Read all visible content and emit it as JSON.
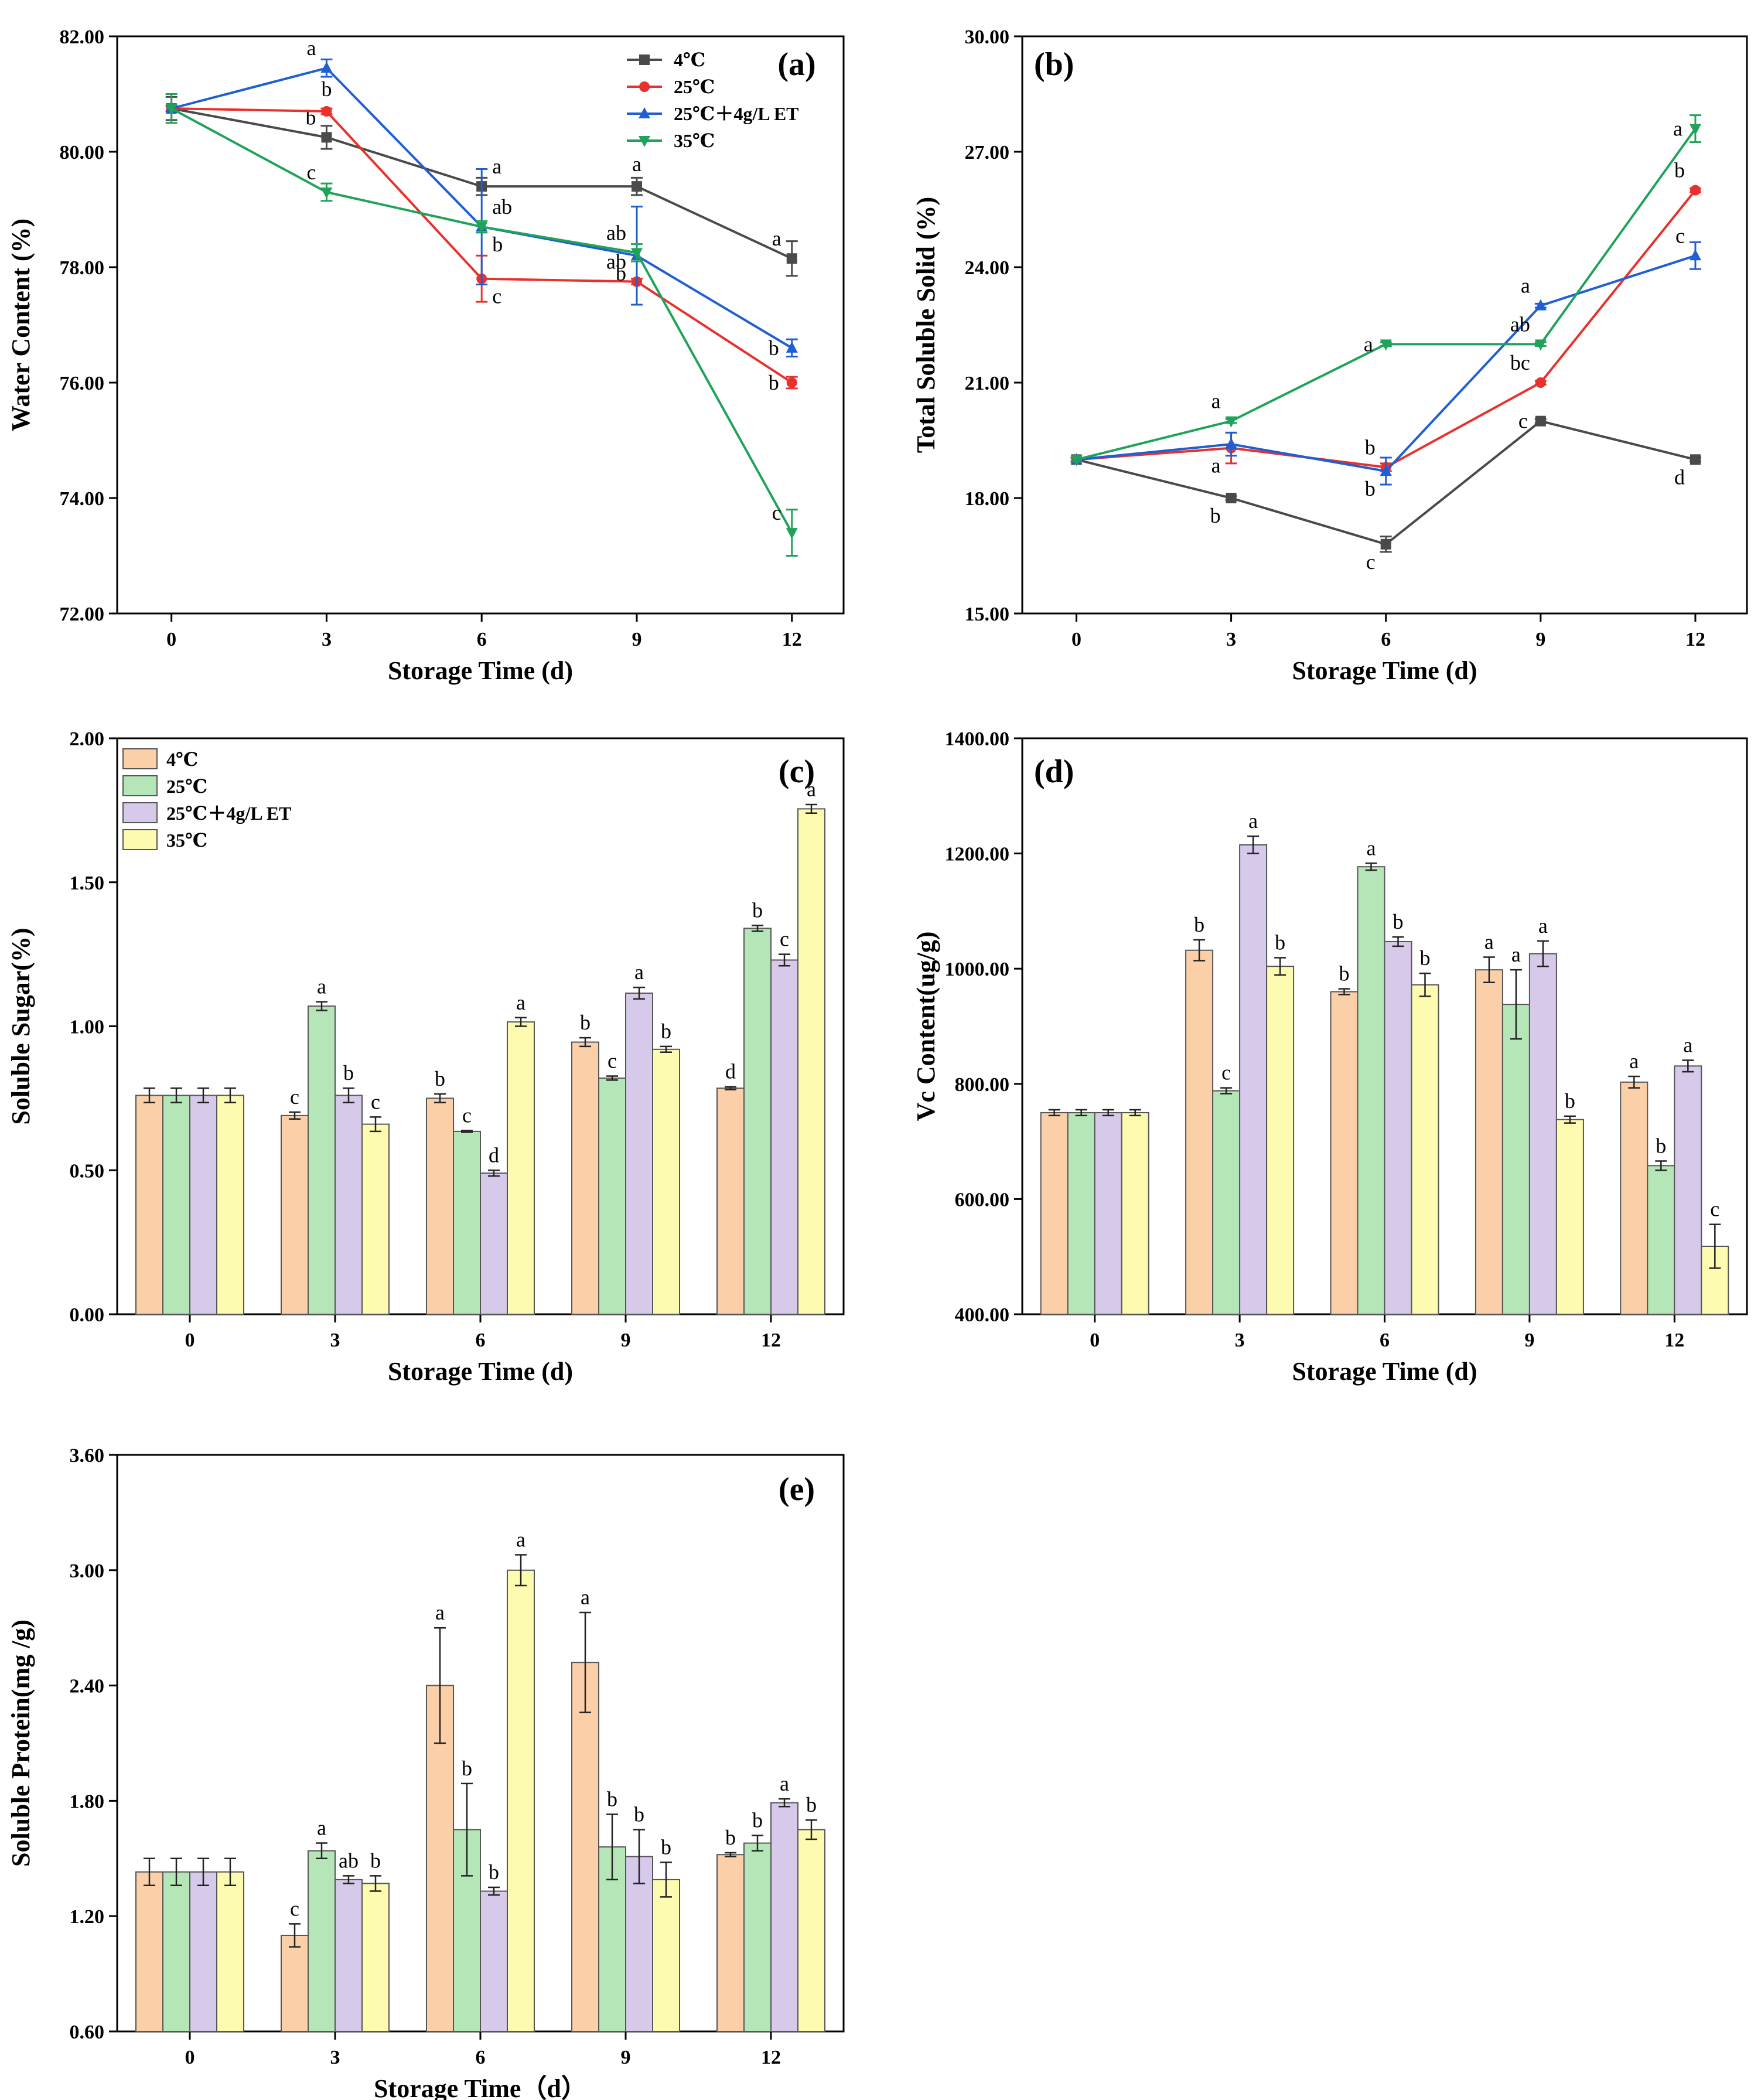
{
  "colors": {
    "4C": "#4a4a4a",
    "25C": "#e8312d",
    "25CET": "#1f5fd1",
    "35C": "#1fa35a",
    "bar4C": "#fbcfa8",
    "bar25C": "#b5e6b8",
    "bar25CET": "#d6c9ea",
    "bar35C": "#fdfbb0",
    "barEdge": "#555555"
  },
  "chart_data": [
    {
      "panel": "(a)",
      "type": "line",
      "x": [
        0,
        3,
        6,
        9,
        12
      ],
      "xticklabels": [
        "0",
        "3",
        "6",
        "9",
        "12"
      ],
      "xlabel": "Storage Time (d)",
      "ylabel": "Water Content (%)",
      "ylim": [
        72,
        82
      ],
      "yticks": [
        "72.00",
        "74.00",
        "76.00",
        "78.00",
        "80.00",
        "82.00"
      ],
      "legend_position": "top-right",
      "series": [
        {
          "key": "4C",
          "name": "4℃",
          "marker": "square",
          "values": [
            80.75,
            80.25,
            79.4,
            79.4,
            78.15
          ],
          "err": [
            0.2,
            0.2,
            0.15,
            0.15,
            0.3
          ],
          "letters": [
            "",
            "b",
            "a",
            "a",
            "a"
          ],
          "pos": [
            "",
            "above-left",
            "above-right",
            "above",
            "above-left"
          ]
        },
        {
          "key": "25C",
          "name": "25℃",
          "marker": "circle",
          "values": [
            80.75,
            80.7,
            77.8,
            77.75,
            76.0
          ],
          "err": [
            0.05,
            0.05,
            0.4,
            0.05,
            0.1
          ],
          "letters": [
            "",
            "b",
            "c",
            "ab",
            "b"
          ],
          "pos": [
            "",
            "above",
            "below-right",
            "above-left",
            "left"
          ]
        },
        {
          "key": "25CET",
          "name": "25℃＋4g/L ET",
          "marker": "triangle-up",
          "values": [
            80.75,
            81.45,
            78.7,
            78.2,
            76.6
          ],
          "err": [
            0.05,
            0.15,
            1.0,
            0.85,
            0.15
          ],
          "letters": [
            "",
            "a",
            "b",
            "b",
            "b"
          ],
          "pos": [
            "",
            "above-left",
            "below-right",
            "below-left",
            "left"
          ]
        },
        {
          "key": "35C",
          "name": "35℃",
          "marker": "triangle-down",
          "values": [
            80.75,
            79.3,
            78.7,
            78.25,
            73.4
          ],
          "err": [
            0.25,
            0.15,
            0.1,
            0.15,
            0.4
          ],
          "letters": [
            "",
            "c",
            "ab",
            "ab",
            "c"
          ],
          "pos": [
            "",
            "above-left",
            "above-right",
            "above-left",
            "above-left"
          ]
        }
      ]
    },
    {
      "panel": "(b)",
      "type": "line",
      "x": [
        0,
        3,
        6,
        9,
        12
      ],
      "xticklabels": [
        "0",
        "3",
        "6",
        "9",
        "12"
      ],
      "xlabel": "Storage Time (d)",
      "ylabel": "Total Soluble Solid (%)",
      "ylim": [
        15,
        30
      ],
      "yticks": [
        "15.00",
        "18.00",
        "21.00",
        "24.00",
        "27.00",
        "30.00"
      ],
      "series": [
        {
          "key": "4C",
          "name": "4℃",
          "marker": "square",
          "values": [
            19.0,
            18.0,
            16.8,
            20.0,
            19.0
          ],
          "err": [
            0.05,
            0.05,
            0.2,
            0.05,
            0.05
          ],
          "letters": [
            "",
            "b",
            "c",
            "c",
            "d"
          ],
          "pos": [
            "",
            "below-left",
            "below-left",
            "left",
            "below-left"
          ]
        },
        {
          "key": "25C",
          "name": "25℃",
          "marker": "circle",
          "values": [
            19.0,
            19.3,
            18.8,
            21.0,
            26.0
          ],
          "err": [
            0.05,
            0.4,
            0.1,
            0.05,
            0.05
          ],
          "letters": [
            "",
            "a",
            "b",
            "bc",
            "b"
          ],
          "pos": [
            "",
            "below-left",
            "above-left",
            "above-left",
            "above-left"
          ]
        },
        {
          "key": "25CET",
          "name": "25℃＋4g/L ET",
          "marker": "triangle-up",
          "values": [
            19.0,
            19.4,
            18.7,
            23.0,
            24.3
          ],
          "err": [
            0.05,
            0.3,
            0.35,
            0.05,
            0.35
          ],
          "letters": [
            "",
            "",
            "b",
            "a",
            "c"
          ],
          "pos": [
            "",
            "",
            "below-left",
            "above-left",
            "above-left"
          ]
        },
        {
          "key": "35C",
          "name": "35℃",
          "marker": "triangle-down",
          "values": [
            19.0,
            20.0,
            22.0,
            22.0,
            27.6
          ],
          "err": [
            0.05,
            0.05,
            0.05,
            0.05,
            0.35
          ],
          "letters": [
            "",
            "a",
            "a",
            "ab",
            "a"
          ],
          "pos": [
            "",
            "above-left",
            "left",
            "above-left",
            "left"
          ]
        }
      ]
    },
    {
      "panel": "(c)",
      "type": "bar",
      "categories": [
        "0",
        "3",
        "6",
        "9",
        "12"
      ],
      "xlabel": "Storage Time (d)",
      "ylabel": "Soluble Sugar(%)",
      "ylim": [
        0,
        2
      ],
      "yticks": [
        "0.00",
        "0.50",
        "1.00",
        "1.50",
        "2.00"
      ],
      "legend_position": "top-left",
      "series": [
        {
          "key": "bar4C",
          "name": "4℃",
          "values": [
            0.76,
            0.69,
            0.75,
            0.945,
            0.785
          ],
          "err": [
            0.025,
            0.012,
            0.015,
            0.015,
            0.005
          ],
          "letters": [
            "",
            "c",
            "b",
            "b",
            "d"
          ]
        },
        {
          "key": "bar25C",
          "name": "25℃",
          "values": [
            0.76,
            1.07,
            0.635,
            0.82,
            1.34
          ],
          "err": [
            0.025,
            0.015,
            0.003,
            0.007,
            0.01
          ],
          "letters": [
            "",
            "a",
            "c",
            "c",
            "b"
          ]
        },
        {
          "key": "bar25CET",
          "name": "25℃＋4g/L ET",
          "values": [
            0.76,
            0.76,
            0.49,
            1.115,
            1.23
          ],
          "err": [
            0.025,
            0.025,
            0.01,
            0.02,
            0.02
          ],
          "letters": [
            "",
            "b",
            "d",
            "a",
            "c"
          ]
        },
        {
          "key": "bar35C",
          "name": "35℃",
          "values": [
            0.76,
            0.66,
            1.015,
            0.92,
            1.755
          ],
          "err": [
            0.025,
            0.025,
            0.015,
            0.01,
            0.015
          ],
          "letters": [
            "",
            "c",
            "a",
            "b",
            "a"
          ]
        }
      ]
    },
    {
      "panel": "(d)",
      "type": "bar",
      "categories": [
        "0",
        "3",
        "6",
        "9",
        "12"
      ],
      "xlabel": "Storage Time (d)",
      "ylabel": "Vc Content(ug/g)",
      "ylim": [
        400,
        1400
      ],
      "yticks": [
        "400.00",
        "600.00",
        "800.00",
        "1000.00",
        "1200.00",
        "1400.00"
      ],
      "series": [
        {
          "key": "bar4C",
          "name": "4℃",
          "values": [
            750,
            1032,
            960,
            998,
            803
          ],
          "err": [
            5,
            18,
            5,
            22,
            10
          ],
          "letters": [
            "",
            "b",
            "b",
            "a",
            "a"
          ]
        },
        {
          "key": "bar25C",
          "name": "25℃",
          "values": [
            750,
            788,
            1177,
            938,
            658
          ],
          "err": [
            5,
            5,
            6,
            60,
            8
          ],
          "letters": [
            "",
            "c",
            "a",
            "a",
            "b"
          ]
        },
        {
          "key": "bar25CET",
          "name": "25℃＋4g/L ET",
          "values": [
            750,
            1215,
            1047,
            1026,
            831
          ],
          "err": [
            5,
            15,
            8,
            22,
            10
          ],
          "letters": [
            "",
            "a",
            "b",
            "a",
            "a"
          ]
        },
        {
          "key": "bar35C",
          "name": "35℃",
          "values": [
            750,
            1004,
            972,
            738,
            518
          ],
          "err": [
            5,
            15,
            20,
            6,
            38
          ],
          "letters": [
            "",
            "b",
            "b",
            "b",
            "c"
          ]
        }
      ]
    },
    {
      "panel": "(e)",
      "type": "bar",
      "categories": [
        "0",
        "3",
        "6",
        "9",
        "12"
      ],
      "xlabel": "Storage Time（d）",
      "ylabel": "Soluble Protein(mg /g)",
      "ylim": [
        0.6,
        3.6
      ],
      "yticks": [
        "0.60",
        "1.20",
        "1.80",
        "2.40",
        "3.00",
        "3.60"
      ],
      "series": [
        {
          "key": "bar4C",
          "name": "4℃",
          "values": [
            1.43,
            1.1,
            2.4,
            2.52,
            1.52
          ],
          "err": [
            0.07,
            0.06,
            0.3,
            0.26,
            0.01
          ],
          "letters": [
            "",
            "c",
            "a",
            "a",
            "b"
          ]
        },
        {
          "key": "bar25C",
          "name": "25℃",
          "values": [
            1.43,
            1.54,
            1.65,
            1.56,
            1.58
          ],
          "err": [
            0.07,
            0.04,
            0.24,
            0.17,
            0.04
          ],
          "letters": [
            "",
            "a",
            "b",
            "b",
            "b"
          ]
        },
        {
          "key": "bar25CET",
          "name": "25℃＋4g/L ET",
          "values": [
            1.43,
            1.39,
            1.33,
            1.51,
            1.79
          ],
          "err": [
            0.07,
            0.02,
            0.02,
            0.14,
            0.02
          ],
          "letters": [
            "",
            "ab",
            "b",
            "b",
            "a"
          ]
        },
        {
          "key": "bar35C",
          "name": "35℃",
          "values": [
            1.43,
            1.37,
            3.0,
            1.39,
            1.65
          ],
          "err": [
            0.07,
            0.04,
            0.08,
            0.09,
            0.05
          ],
          "letters": [
            "",
            "b",
            "a",
            "b",
            "b"
          ]
        }
      ]
    }
  ]
}
